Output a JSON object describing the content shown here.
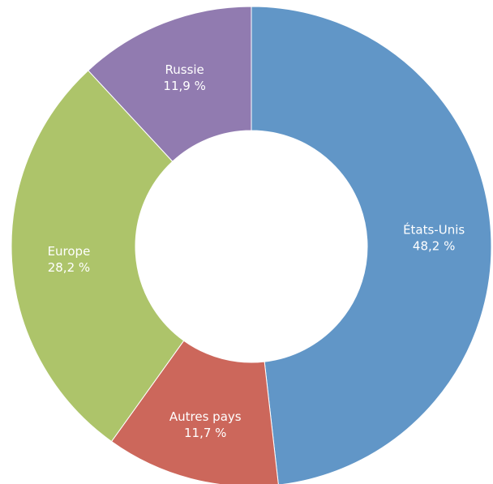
{
  "chart_data": {
    "type": "pie",
    "donut": true,
    "title": "",
    "legend": "none",
    "slices": [
      {
        "label": "États-Unis",
        "value": 48.2,
        "value_label": "48,2 %",
        "color": "#6196c7"
      },
      {
        "label": "Autres pays",
        "value": 11.7,
        "value_label": "11,7 %",
        "color": "#cc675b"
      },
      {
        "label": "Europe",
        "value": 28.2,
        "value_label": "28,2 %",
        "color": "#adc46a"
      },
      {
        "label": "Russie",
        "value": 11.9,
        "value_label": "11,9 %",
        "color": "#917bb0"
      }
    ]
  }
}
